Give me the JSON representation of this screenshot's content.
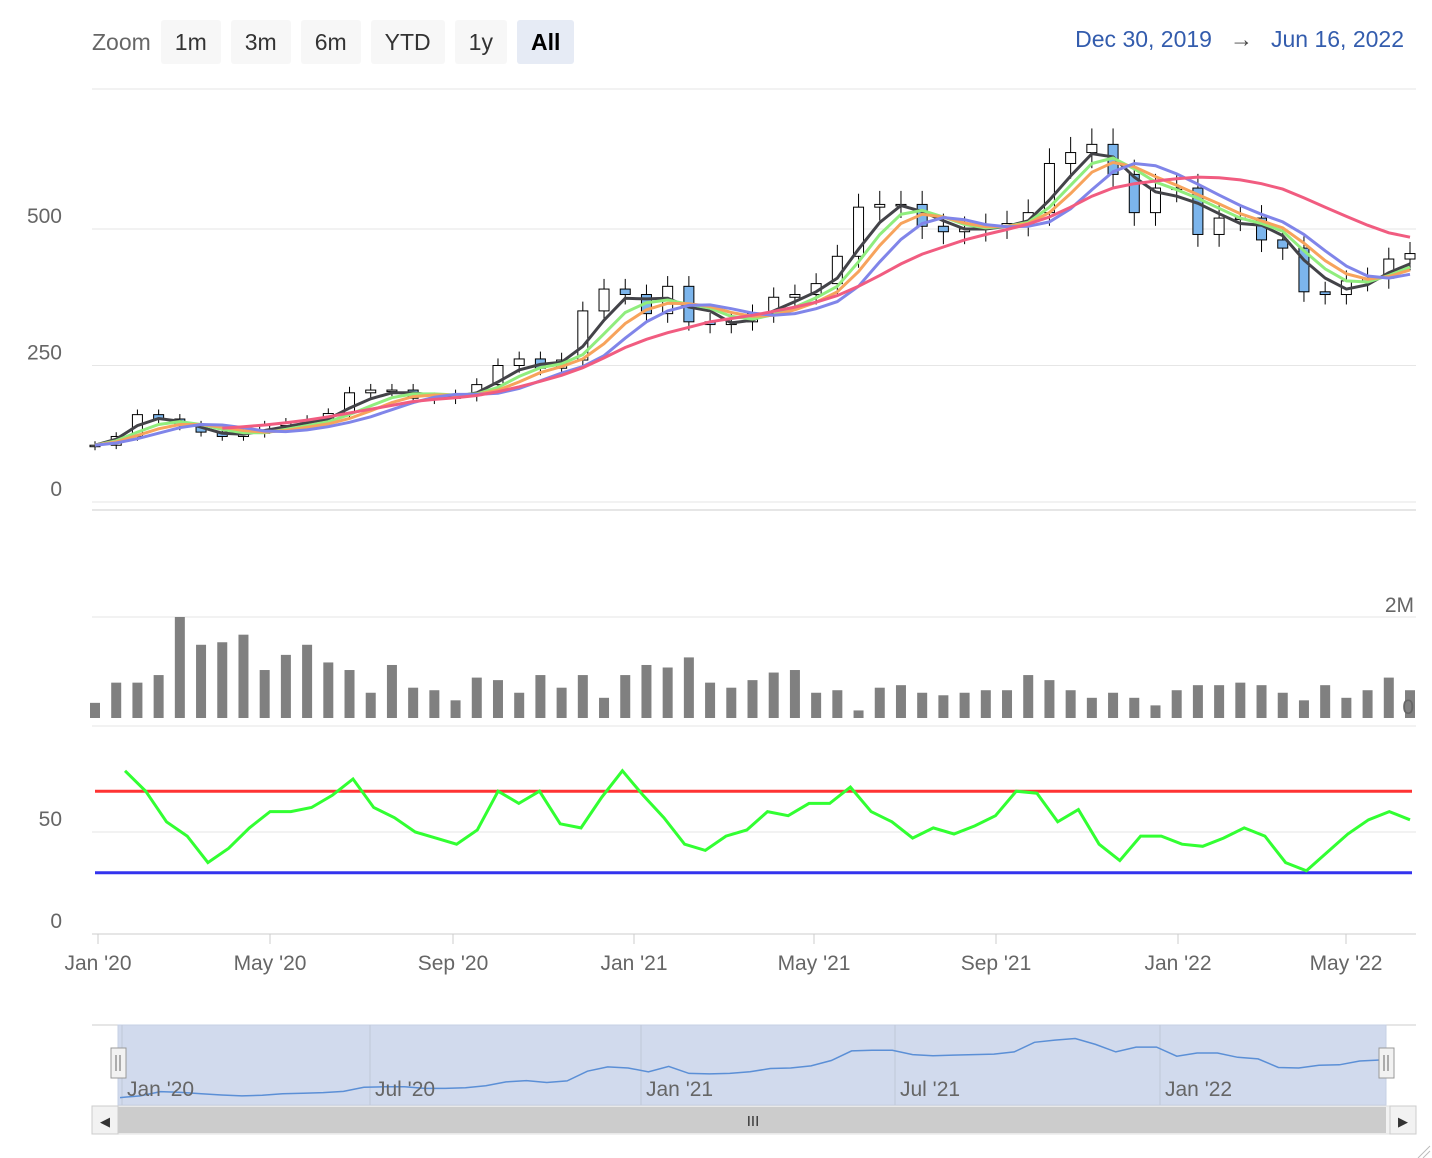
{
  "zoom": {
    "label": "Zoom",
    "buttons": [
      "1m",
      "3m",
      "6m",
      "YTD",
      "1y",
      "All"
    ],
    "active": "All"
  },
  "range": {
    "from": "Dec 30, 2019",
    "arrow": "→",
    "to": "Jun 16, 2022"
  },
  "navigator_labels": [
    "Jan '20",
    "Jul '20",
    "Jan '21",
    "Jul '21",
    "Jan '22"
  ],
  "scrollbar": {
    "grip": "III",
    "left_arrow": "◀",
    "right_arrow": "▶"
  },
  "chart_data": [
    {
      "type": "candlestick",
      "panel": "price",
      "y_ticks": [
        "0",
        "250",
        "500"
      ],
      "ylim": [
        0,
        650
      ],
      "x_ticks": [
        "Jan '20",
        "May '20",
        "Sep '20",
        "Jan '21",
        "May '21",
        "Sep '21",
        "Jan '22",
        "May '22"
      ],
      "close": [
        104,
        120,
        160,
        152,
        140,
        128,
        120,
        126,
        140,
        145,
        150,
        162,
        200,
        205,
        205,
        190,
        190,
        195,
        215,
        250,
        262,
        245,
        260,
        350,
        390,
        380,
        345,
        395,
        330,
        325,
        330,
        345,
        375,
        380,
        400,
        450,
        540,
        545,
        545,
        505,
        495,
        500,
        505,
        510,
        530,
        620,
        640,
        655,
        600,
        530,
        575,
        575,
        490,
        520,
        520,
        480,
        465,
        385,
        380,
        405,
        410,
        445,
        455
      ],
      "colors": {
        "up": "#ffffff",
        "down": "#7cb5ec",
        "wick": "#000000"
      }
    },
    {
      "type": "line",
      "panel": "price",
      "series": [
        {
          "color": "#434348",
          "values": [
            104,
            115,
            140,
            153,
            148,
            137,
            126,
            124,
            131,
            138,
            145,
            152,
            172,
            189,
            200,
            200,
            195,
            193,
            200,
            220,
            242,
            252,
            256,
            285,
            333,
            373,
            372,
            373,
            357,
            350,
            328,
            333,
            350,
            367,
            385,
            410,
            463,
            512,
            543,
            532,
            515,
            500,
            500,
            505,
            515,
            553,
            597,
            638,
            632,
            595,
            568,
            560,
            547,
            528,
            510,
            507,
            488,
            443,
            410,
            390,
            398,
            420,
            436
          ]
        },
        {
          "color": "#90ed7d",
          "values": [
            104,
            112,
            128,
            142,
            147,
            142,
            133,
            127,
            127,
            133,
            140,
            147,
            160,
            176,
            191,
            198,
            198,
            196,
            198,
            210,
            230,
            246,
            253,
            270,
            308,
            347,
            365,
            370,
            362,
            355,
            340,
            335,
            343,
            357,
            374,
            395,
            440,
            490,
            527,
            534,
            522,
            508,
            502,
            505,
            512,
            540,
            580,
            620,
            630,
            610,
            586,
            572,
            556,
            538,
            520,
            510,
            496,
            460,
            427,
            405,
            403,
            415,
            430
          ]
        },
        {
          "color": "#f7a35c",
          "values": [
            104,
            110,
            122,
            134,
            142,
            142,
            137,
            131,
            128,
            131,
            137,
            143,
            153,
            167,
            182,
            193,
            196,
            196,
            197,
            205,
            220,
            237,
            248,
            262,
            290,
            327,
            352,
            364,
            363,
            358,
            347,
            340,
            342,
            352,
            366,
            385,
            422,
            470,
            510,
            527,
            522,
            511,
            504,
            505,
            510,
            530,
            565,
            604,
            622,
            614,
            596,
            580,
            563,
            546,
            528,
            515,
            502,
            474,
            442,
            418,
            408,
            413,
            425
          ]
        },
        {
          "color": "#8085e9",
          "values": [
            104,
            108,
            116,
            126,
            136,
            142,
            141,
            136,
            130,
            129,
            132,
            138,
            146,
            156,
            169,
            182,
            192,
            197,
            197,
            199,
            208,
            222,
            236,
            248,
            268,
            300,
            330,
            350,
            360,
            361,
            354,
            346,
            342,
            345,
            354,
            367,
            395,
            440,
            481,
            510,
            521,
            517,
            508,
            504,
            505,
            513,
            537,
            572,
            605,
            620,
            616,
            601,
            582,
            562,
            543,
            527,
            513,
            490,
            460,
            432,
            414,
            410,
            417
          ]
        },
        {
          "color": "#f15c80",
          "values": [
            null,
            null,
            null,
            null,
            null,
            null,
            135,
            138,
            141,
            145,
            150,
            156,
            163,
            170,
            177,
            184,
            188,
            191,
            195,
            202,
            211,
            221,
            232,
            246,
            264,
            283,
            298,
            310,
            320,
            330,
            336,
            342,
            349,
            357,
            366,
            378,
            395,
            415,
            436,
            454,
            467,
            480,
            490,
            499,
            509,
            522,
            540,
            560,
            575,
            583,
            588,
            592,
            595,
            594,
            590,
            583,
            573,
            557,
            540,
            523,
            507,
            493,
            485
          ]
        }
      ]
    },
    {
      "type": "bar",
      "panel": "volume",
      "y_ticks": [
        "0",
        "2M"
      ],
      "ylim": [
        0,
        2000000
      ],
      "color": "#808080",
      "values": [
        300000,
        700000,
        700000,
        850000,
        2000000,
        1450000,
        1500000,
        1650000,
        950000,
        1250000,
        1450000,
        1100000,
        950000,
        500000,
        1050000,
        600000,
        550000,
        350000,
        800000,
        750000,
        500000,
        850000,
        600000,
        850000,
        400000,
        850000,
        1050000,
        1000000,
        1200000,
        700000,
        600000,
        750000,
        900000,
        950000,
        500000,
        550000,
        150000,
        600000,
        650000,
        500000,
        450000,
        500000,
        550000,
        550000,
        850000,
        750000,
        550000,
        400000,
        500000,
        400000,
        250000,
        550000,
        650000,
        650000,
        700000,
        650000,
        500000,
        350000,
        650000,
        400000,
        550000,
        800000,
        550000
      ]
    },
    {
      "type": "line",
      "panel": "rsi",
      "y_ticks": [
        "0",
        "50"
      ],
      "ylim": [
        0,
        100
      ],
      "overbought": 70,
      "oversold": 30,
      "color": "#32ff32",
      "values": [
        80,
        70,
        55,
        48,
        35,
        42,
        52,
        60,
        60,
        62,
        68,
        76,
        62,
        57,
        50,
        47,
        44,
        51,
        70,
        64,
        70,
        54,
        52,
        67,
        80,
        68,
        57,
        44,
        41,
        48,
        51,
        60,
        58,
        64,
        64,
        72,
        60,
        55,
        47,
        52,
        49,
        53,
        58,
        70,
        69,
        55,
        61,
        44,
        36,
        48,
        48,
        44,
        43,
        47,
        52,
        48,
        35,
        31,
        40,
        49,
        56,
        60,
        56
      ]
    }
  ]
}
